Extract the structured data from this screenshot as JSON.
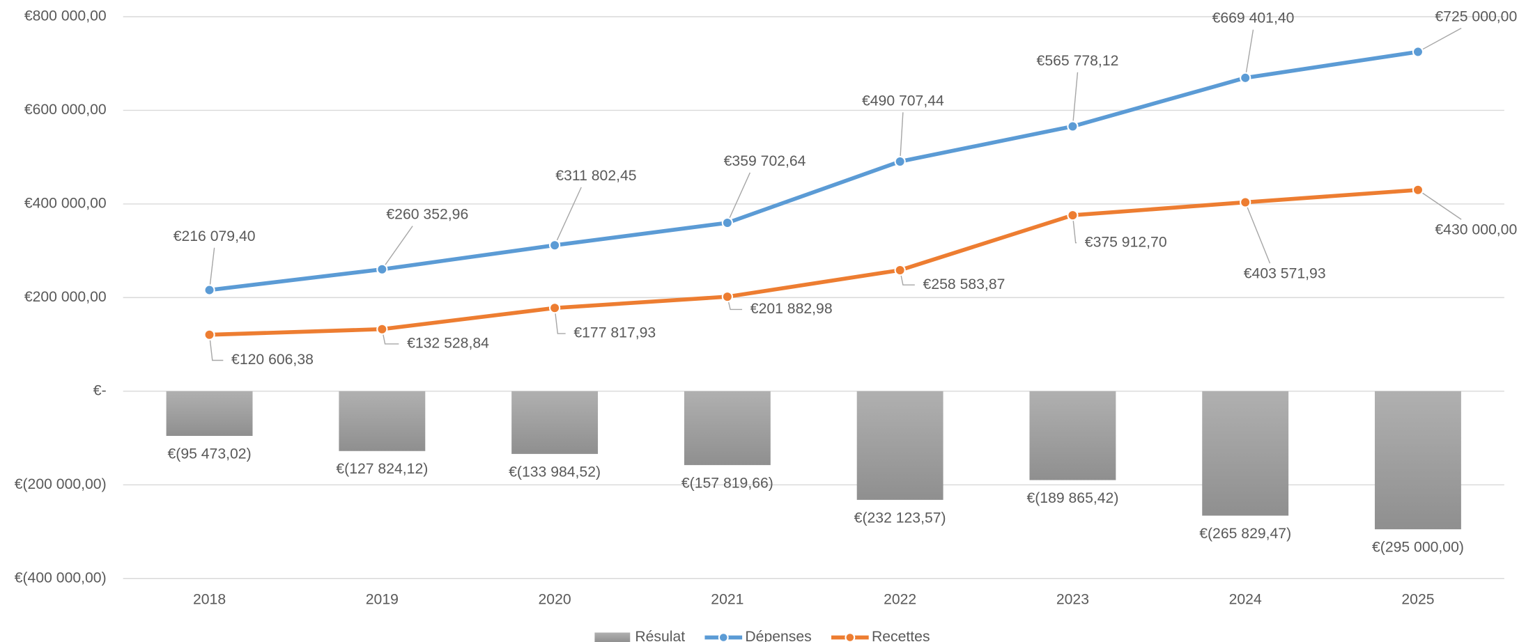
{
  "chart_data": {
    "type": "bar-line",
    "categories": [
      "2018",
      "2019",
      "2020",
      "2021",
      "2022",
      "2023",
      "2024",
      "2025"
    ],
    "series": [
      {
        "name": "Résulat",
        "type": "bar",
        "color": "#a5a5a5",
        "values": [
          -95473.02,
          -127824.12,
          -133984.52,
          -157819.66,
          -232123.57,
          -189865.42,
          -265829.47,
          -295000.0
        ],
        "value_labels": [
          "€(95 473,02)",
          "€(127 824,12)",
          "€(133 984,52)",
          "€(157 819,66)",
          "€(232 123,57)",
          "€(189 865,42)",
          "€(265 829,47)",
          "€(295 000,00)"
        ]
      },
      {
        "name": "Dépenses",
        "type": "line",
        "color": "#5b9bd5",
        "values": [
          216079.4,
          260352.96,
          311802.45,
          359702.64,
          490707.44,
          565778.12,
          669401.4,
          725000.0
        ],
        "value_labels": [
          "€216 079,40",
          "€260 352,96",
          "€311 802,45",
          "€359 702,64",
          "€490 707,44",
          "€565 778,12",
          "€669 401,40",
          "€725 000,00"
        ]
      },
      {
        "name": "Recettes",
        "type": "line",
        "color": "#ed7d31",
        "values": [
          120606.38,
          132528.84,
          177817.93,
          201882.98,
          258583.87,
          375912.7,
          403571.93,
          430000.0
        ],
        "value_labels": [
          "€120 606,38",
          "€132 528,84",
          "€177 817,93",
          "€201 882,98",
          "€258 583,87",
          "€375 912,70",
          "€403 571,93",
          "€430 000,00"
        ]
      }
    ],
    "ylim": [
      -400000,
      800000
    ],
    "yticks": [
      {
        "value": -400000,
        "label": "€(400 000,00)"
      },
      {
        "value": -200000,
        "label": "€(200 000,00)"
      },
      {
        "value": 0,
        "label": "€-"
      },
      {
        "value": 200000,
        "label": "€200 000,00"
      },
      {
        "value": 400000,
        "label": "€400 000,00"
      },
      {
        "value": 600000,
        "label": "€600 000,00"
      },
      {
        "value": 800000,
        "label": "€800 000,00"
      }
    ],
    "grid": true,
    "legend": "bottom"
  }
}
